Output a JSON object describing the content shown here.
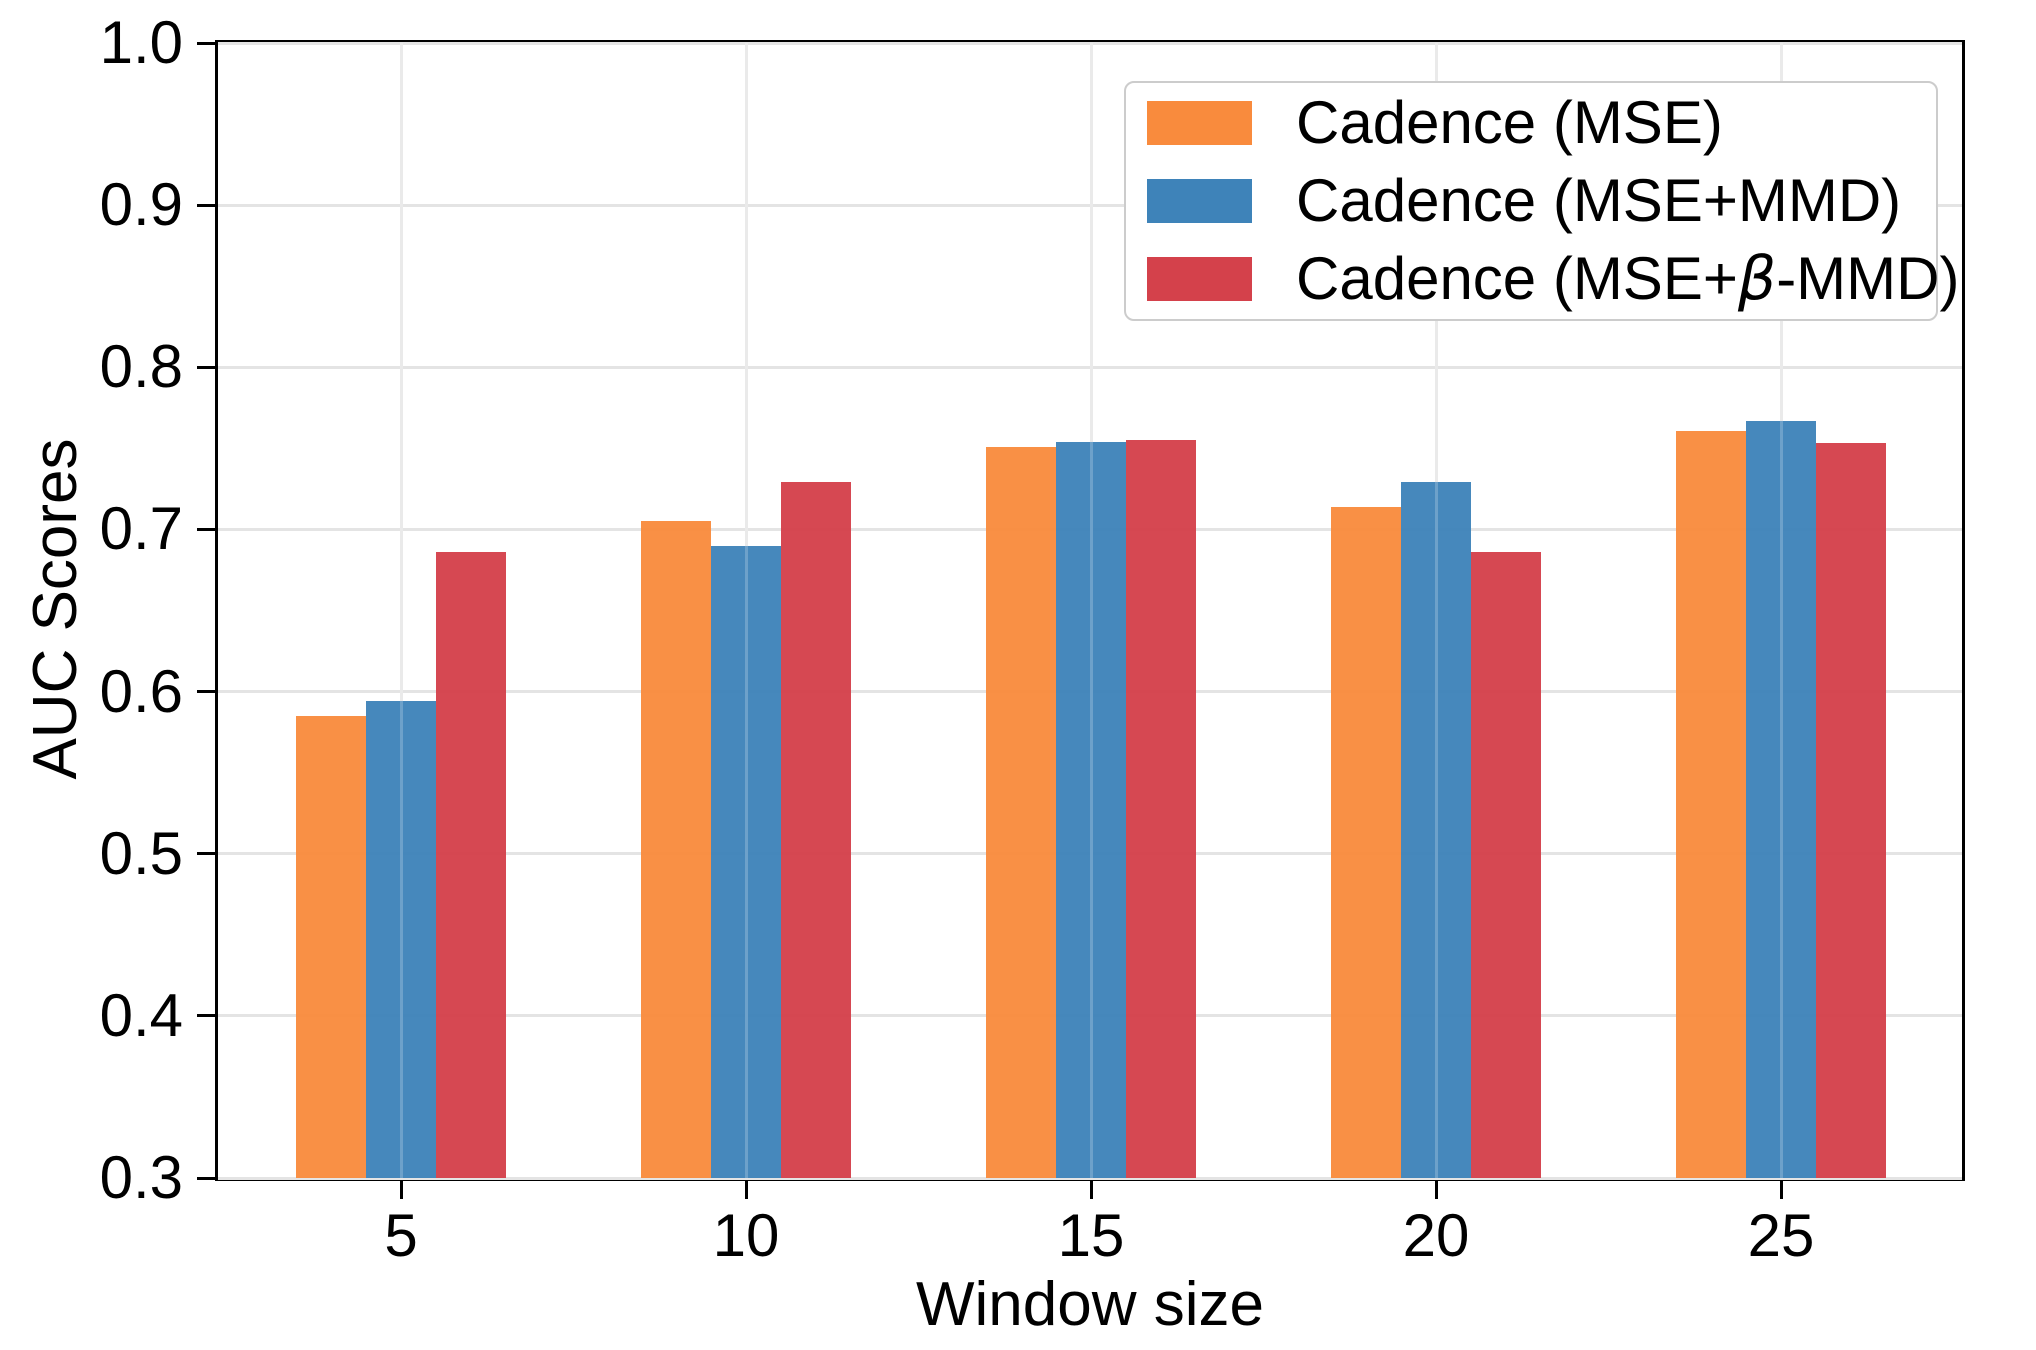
{
  "chart_data": {
    "type": "bar",
    "title": "",
    "xlabel": "Window size",
    "ylabel": "AUC Scores",
    "categories": [
      "5",
      "10",
      "15",
      "20",
      "25"
    ],
    "series": [
      {
        "name": "Cadence (MSE)",
        "color": "#F98B3D",
        "values": [
          0.585,
          0.705,
          0.751,
          0.714,
          0.761
        ]
      },
      {
        "name": "Cadence (MSE+MMD)",
        "color": "#3E83B9",
        "values": [
          0.594,
          0.69,
          0.754,
          0.729,
          0.767
        ]
      },
      {
        "name": "Cadence (MSE+β-MMD)",
        "color": "#D4414B",
        "values": [
          0.686,
          0.729,
          0.755,
          0.686,
          0.753
        ]
      }
    ],
    "ylim": [
      0.3,
      1.0
    ],
    "yticks": [
      0.3,
      0.4,
      0.5,
      0.6,
      0.7,
      0.8,
      0.9,
      1.0
    ],
    "ytick_labels": [
      "0.3",
      "0.4",
      "0.5",
      "0.6",
      "0.7",
      "0.8",
      "0.9",
      "1.0"
    ],
    "grid": true,
    "legend_position": "upper right",
    "colors": {
      "spine": "#000000",
      "grid": "#e4e4e4",
      "text": "#000000",
      "legend_border": "#cccccc",
      "background": "#ffffff"
    }
  }
}
